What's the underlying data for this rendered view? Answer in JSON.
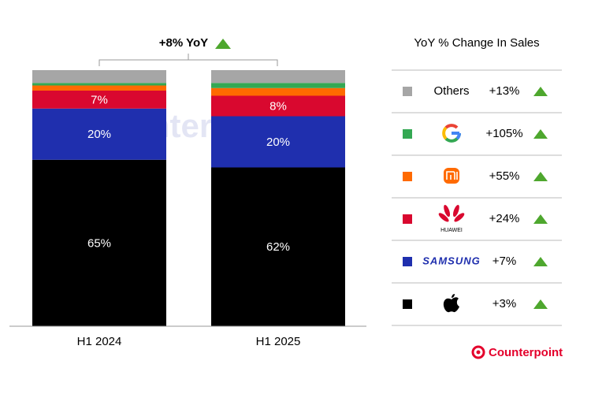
{
  "chart_data": {
    "type": "stacked_bar",
    "annotation": "+8% YoY",
    "legend_title": "YoY % Change In Sales",
    "brand": "Counterpoint",
    "categories": [
      "H1 2024",
      "H1 2025"
    ],
    "ylim": [
      0,
      100
    ],
    "series": [
      {
        "color": "#000000",
        "values": [
          65,
          62
        ],
        "value_labels": [
          "65%",
          "62%"
        ],
        "yoy_change": 3,
        "yoy_change_label": "+3%"
      },
      {
        "name": "SAMSUNG",
        "color": "#1f2fae",
        "values": [
          20,
          20
        ],
        "value_labels": [
          "20%",
          "20%"
        ],
        "yoy_change": 7,
        "yoy_change_label": "+7%"
      },
      {
        "name": "HUAWEI",
        "color": "#d9082f",
        "values": [
          7,
          8
        ],
        "value_labels": [
          "7%",
          "8%"
        ],
        "yoy_change": 24,
        "yoy_change_label": "+24%"
      },
      {
        "color": "#ff6a00",
        "values": [
          2,
          3
        ],
        "yoy_change": 55,
        "yoy_change_label": "+55%"
      },
      {
        "color": "#34a853",
        "values": [
          1,
          2
        ],
        "yoy_change": 105,
        "yoy_change_label": "+105%"
      },
      {
        "name": "Others",
        "color": "#a6a6a6",
        "values": [
          5,
          5
        ],
        "yoy_change": 13,
        "yoy_change_label": "+13%"
      }
    ]
  }
}
